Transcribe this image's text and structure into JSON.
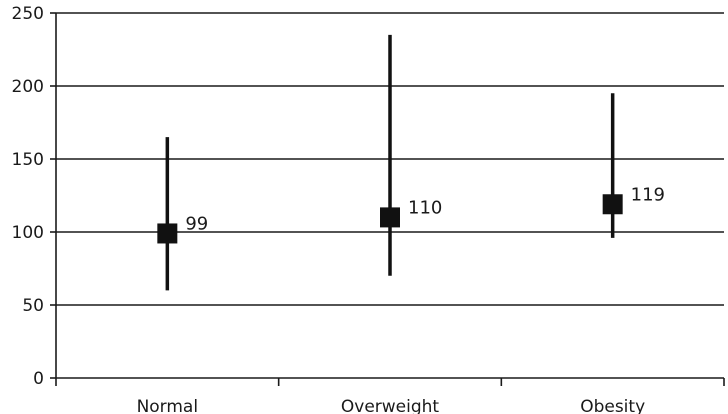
{
  "chart_data": {
    "type": "scatter",
    "title": "",
    "xlabel": "",
    "ylabel": "",
    "ylim": [
      0,
      250
    ],
    "yticks": [
      0,
      50,
      100,
      150,
      200,
      250
    ],
    "grid": true,
    "legend": "none",
    "categories": [
      "Normal",
      "Overweight",
      "Obesity"
    ],
    "series": [
      {
        "values": [
          99,
          110,
          119
        ],
        "lower": [
          60,
          70,
          96
        ],
        "upper": [
          165,
          235,
          195
        ],
        "data_labels": [
          "99",
          "110",
          "119"
        ],
        "marker": "square",
        "color": "#111111"
      }
    ]
  }
}
